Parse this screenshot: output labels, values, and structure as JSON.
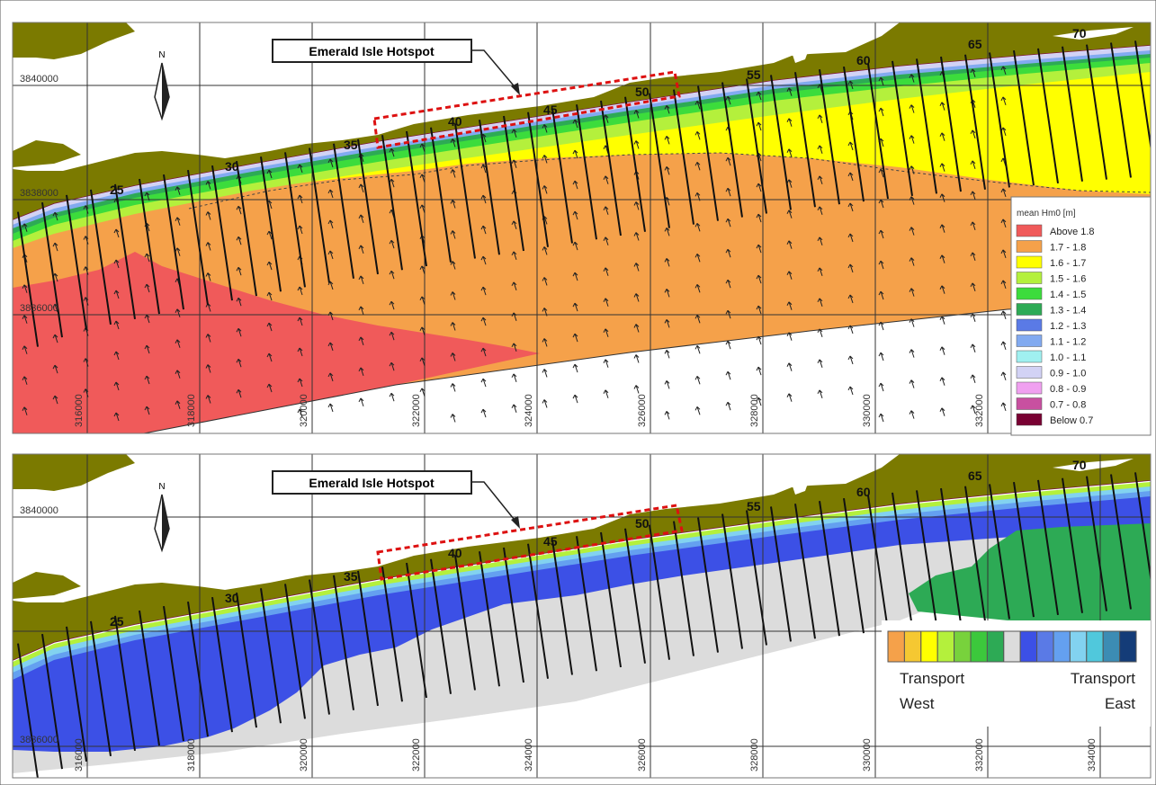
{
  "panels": [
    {
      "id": "top",
      "hotspot_label": "Emerald Isle Hotspot",
      "north_label": "N",
      "northings": [
        "3840000",
        "3838000",
        "3836000"
      ],
      "eastings": [
        "316000",
        "318000",
        "320000",
        "322000",
        "324000",
        "326000",
        "328000",
        "330000",
        "332000"
      ],
      "transect_numbers": [
        "25",
        "30",
        "35",
        "40",
        "45",
        "50",
        "55",
        "60",
        "65",
        "70"
      ],
      "legend": {
        "title": "mean Hm0 [m]",
        "items": [
          {
            "label": "Above 1.8",
            "color": "#f05a5a"
          },
          {
            "label": "1.7 - 1.8",
            "color": "#f5a14a"
          },
          {
            "label": "1.6 - 1.7",
            "color": "#ffff00"
          },
          {
            "label": "1.5 - 1.6",
            "color": "#b4f03c"
          },
          {
            "label": "1.4 - 1.5",
            "color": "#3cdc3c"
          },
          {
            "label": "1.3 - 1.4",
            "color": "#2daa55"
          },
          {
            "label": "1.2 - 1.3",
            "color": "#5a7ae6"
          },
          {
            "label": "1.1 - 1.2",
            "color": "#82aaf0"
          },
          {
            "label": "1.0 - 1.1",
            "color": "#a0f0f0"
          },
          {
            "label": "0.9 - 1.0",
            "color": "#d2d2f5"
          },
          {
            "label": "0.8 - 0.9",
            "color": "#f0a0f0"
          },
          {
            "label": "0.7 - 0.8",
            "color": "#c850a0"
          },
          {
            "label": "Below 0.7",
            "color": "#780032"
          }
        ]
      }
    },
    {
      "id": "bottom",
      "hotspot_label": "Emerald Isle Hotspot",
      "north_label": "N",
      "northings": [
        "3840000",
        "3836000"
      ],
      "eastings": [
        "316000",
        "318000",
        "320000",
        "322000",
        "324000",
        "326000",
        "328000",
        "330000",
        "332000",
        "334000"
      ],
      "transect_numbers": [
        "25",
        "30",
        "35",
        "40",
        "45",
        "50",
        "55",
        "60",
        "65",
        "70"
      ],
      "legend": {
        "left_line1": "Transport",
        "left_line2": "West",
        "right_line1": "Transport",
        "right_line2": "East",
        "colors": [
          "#f5a14a",
          "#f5c832",
          "#ffff00",
          "#b4f03c",
          "#78d23c",
          "#3cc83c",
          "#2daa55",
          "#dcdcdc",
          "#3c50e6",
          "#5a7ae6",
          "#64a0f0",
          "#82d2f0",
          "#50c8dc",
          "#3c8cb4",
          "#143c78"
        ]
      }
    }
  ],
  "colors": {
    "land": "#7b7a00",
    "hotspot_box": "#dd1111",
    "transect": "#111111"
  }
}
